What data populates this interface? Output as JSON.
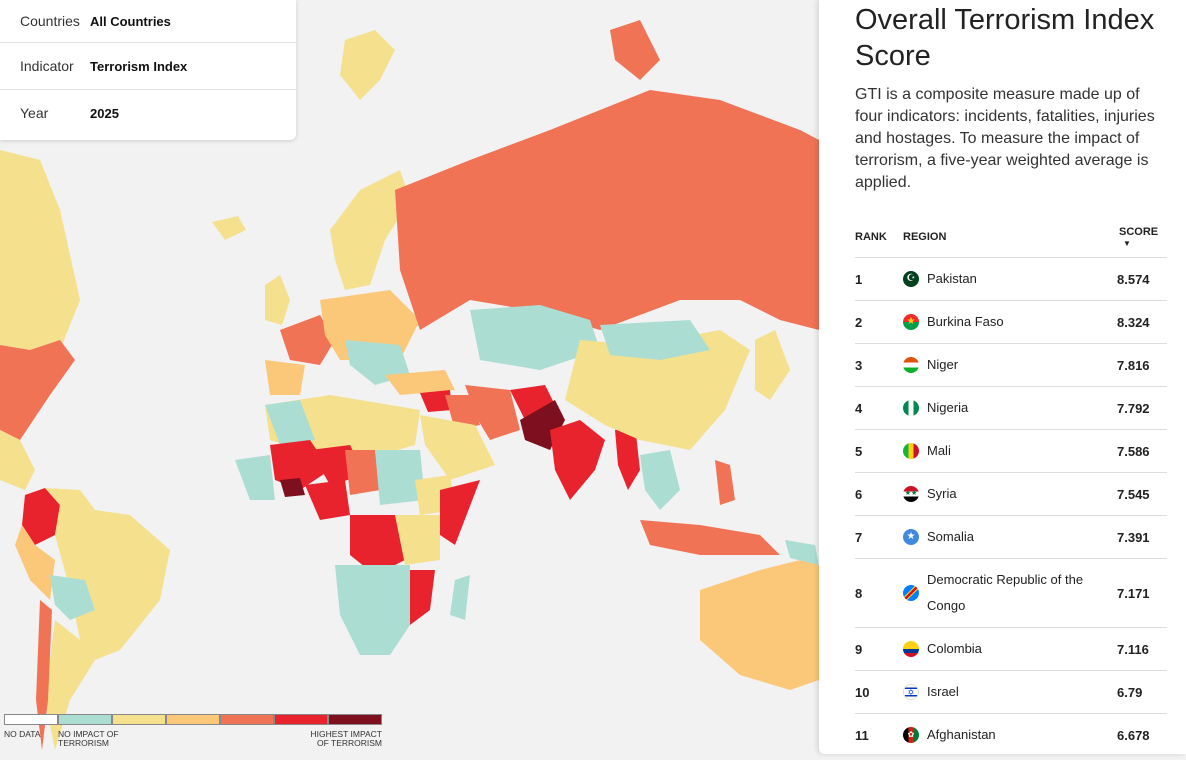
{
  "filters": [
    {
      "label": "Countries",
      "value": "All Countries"
    },
    {
      "label": "Indicator",
      "value": "Terrorism Index"
    },
    {
      "label": "Year",
      "value": "2025"
    }
  ],
  "panel": {
    "title": "Overall Terrorism Index Score",
    "description": "GTI is a composite measure made up of four indicators: incidents, fatalities, injuries and hostages. To measure the impact of terrorism, a five-year weighted average is applied."
  },
  "table": {
    "headers": {
      "rank": "RANK",
      "region": "REGION",
      "score": "SCORE",
      "sort_icon": "sort-desc-icon"
    },
    "rows": [
      {
        "rank": "1",
        "region": "Pakistan",
        "score": "8.574",
        "flag": "pakistan-flag-icon"
      },
      {
        "rank": "2",
        "region": "Burkina Faso",
        "score": "8.324",
        "flag": "burkina-faso-flag-icon"
      },
      {
        "rank": "3",
        "region": "Niger",
        "score": "7.816",
        "flag": "niger-flag-icon"
      },
      {
        "rank": "4",
        "region": "Nigeria",
        "score": "7.792",
        "flag": "nigeria-flag-icon"
      },
      {
        "rank": "5",
        "region": "Mali",
        "score": "7.586",
        "flag": "mali-flag-icon"
      },
      {
        "rank": "6",
        "region": "Syria",
        "score": "7.545",
        "flag": "syria-flag-icon"
      },
      {
        "rank": "7",
        "region": "Somalia",
        "score": "7.391",
        "flag": "somalia-flag-icon"
      },
      {
        "rank": "8",
        "region": "Democratic Republic of the Congo",
        "score": "7.171",
        "flag": "drc-flag-icon"
      },
      {
        "rank": "9",
        "region": "Colombia",
        "score": "7.116",
        "flag": "colombia-flag-icon"
      },
      {
        "rank": "10",
        "region": "Israel",
        "score": "6.79",
        "flag": "israel-flag-icon"
      },
      {
        "rank": "11",
        "region": "Afghanistan",
        "score": "6.678",
        "flag": "afghanistan-flag-icon"
      }
    ]
  },
  "legend": {
    "no_data": "NO DATA",
    "no_impact": "NO IMPACT OF TERRORISM",
    "highest_impact": "HIGHEST IMPACT OF TERRORISM",
    "colors": [
      "#ffffff",
      "#acddd3",
      "#f5e08e",
      "#fbc87a",
      "#f07356",
      "#e8232d",
      "#7d0f1e"
    ]
  },
  "colors": {
    "background": "#f2f2f2",
    "panel_background": "#ffffff",
    "text": "#222222"
  }
}
